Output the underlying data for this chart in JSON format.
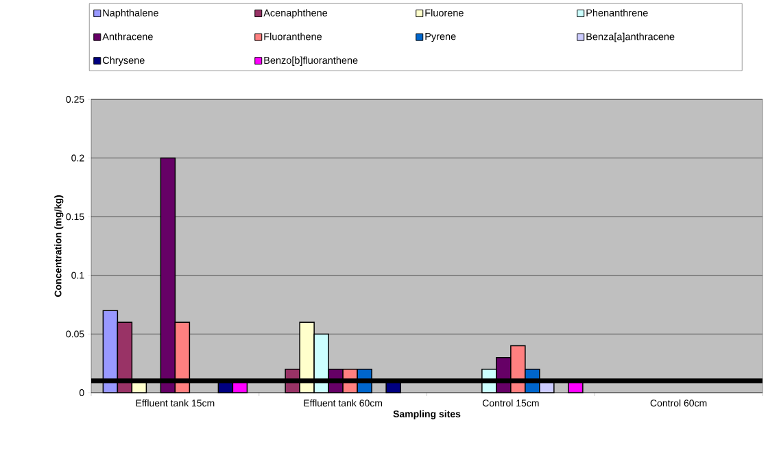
{
  "chart_data": {
    "type": "bar",
    "xlabel": "Sampling sites",
    "ylabel": "Concentration (mg/kg)",
    "categories": [
      "Effluent tank 15cm",
      "Effluent tank 60cm",
      "Control 15cm",
      "Control 60cm"
    ],
    "series": [
      {
        "name": "Naphthalene",
        "color": "#9999ff",
        "values": [
          0.07,
          null,
          null,
          null
        ]
      },
      {
        "name": "Acenaphthene",
        "color": "#993366",
        "values": [
          0.06,
          0.02,
          null,
          null
        ]
      },
      {
        "name": "Fluorene",
        "color": "#ffffcc",
        "values": [
          0.01,
          0.06,
          null,
          null
        ]
      },
      {
        "name": "Phenanthrene",
        "color": "#ccffff",
        "values": [
          null,
          0.05,
          0.02,
          null
        ]
      },
      {
        "name": "Anthracene",
        "color": "#660066",
        "values": [
          0.2,
          0.02,
          0.03,
          null
        ]
      },
      {
        "name": "Fluoranthene",
        "color": "#ff8080",
        "values": [
          0.06,
          0.02,
          0.04,
          null
        ]
      },
      {
        "name": "Pyrene",
        "color": "#0066cc",
        "values": [
          null,
          0.02,
          0.02,
          null
        ]
      },
      {
        "name": "Benza[a]anthracene",
        "color": "#ccccff",
        "values": [
          null,
          null,
          0.01,
          null
        ]
      },
      {
        "name": "Chrysene",
        "color": "#000080",
        "values": [
          0.01,
          0.01,
          null,
          null
        ]
      },
      {
        "name": "Benzo[b]fluoranthene",
        "color": "#ff00ff",
        "values": [
          0.01,
          null,
          0.01,
          null
        ]
      }
    ],
    "ylim": [
      0,
      0.25
    ],
    "yticks": [
      0,
      0.05,
      0.1,
      0.15,
      0.2,
      0.25
    ],
    "ref_lines": [
      {
        "axis": "y",
        "value": 0.01,
        "color": "#000000"
      }
    ],
    "grid": "y",
    "legend": "top"
  }
}
